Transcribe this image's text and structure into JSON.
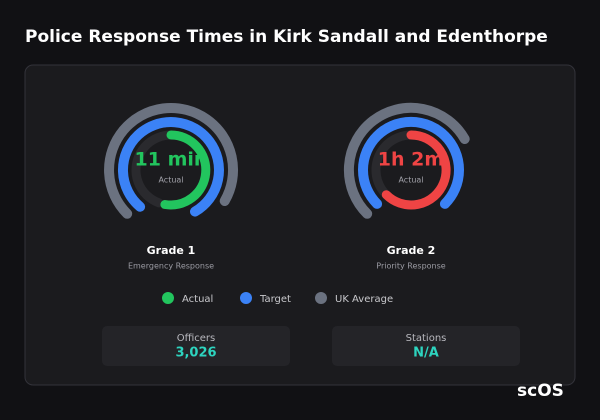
{
  "header": {
    "title": "Police Response Times in Kirk Sandall and Edenthorpe"
  },
  "gauges": [
    {
      "value": "11 min",
      "value_label": "Actual",
      "title": "Grade 1",
      "subtitle": "Emergency Response"
    },
    {
      "value": "1h 2m",
      "value_label": "Actual",
      "title": "Grade 2",
      "subtitle": "Priority Response"
    }
  ],
  "legend": [
    "Actual",
    "Target",
    "UK Average"
  ],
  "stats": [
    {
      "label": "Officers",
      "value": "3,026"
    },
    {
      "label": "Stations",
      "value": "N/A"
    }
  ],
  "logo": "scOS"
}
